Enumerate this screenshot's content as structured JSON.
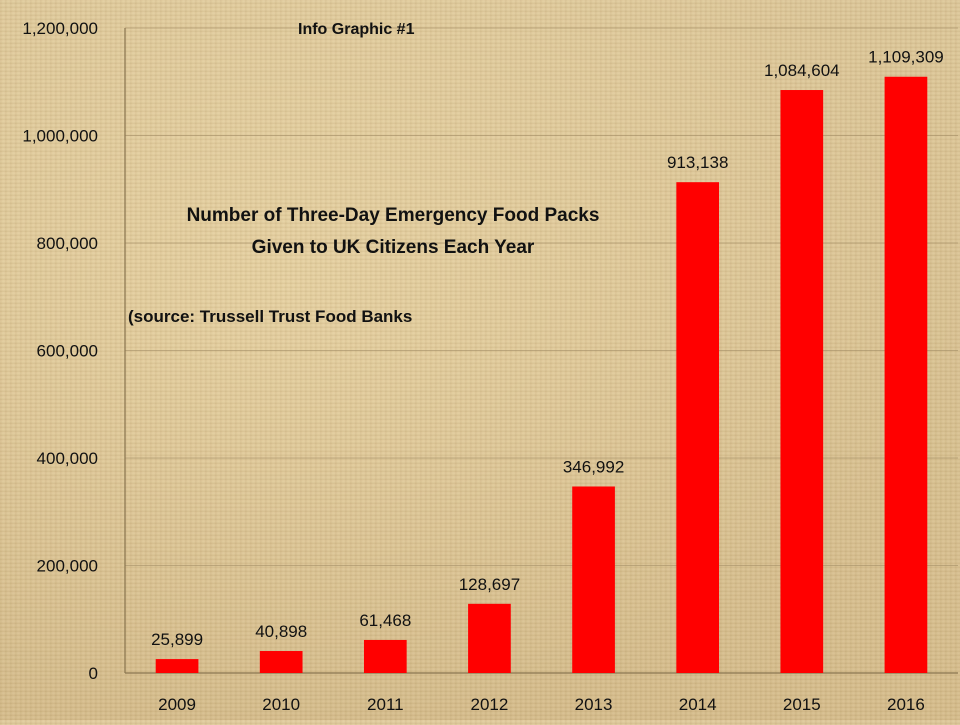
{
  "graphic_label": "Info Graphic #1",
  "colors": {
    "bar": "#ff0000"
  },
  "chart_data": {
    "type": "bar",
    "title": "Number of Three-Day Emergency Food Packs",
    "title_line2": "Given to UK Citizens Each Year",
    "source": "(source: Trussell Trust Food Banks",
    "categories": [
      "2009",
      "2010",
      "2011",
      "2012",
      "2013",
      "2014",
      "2015",
      "2016"
    ],
    "values": [
      25899,
      40898,
      61468,
      128697,
      346992,
      913138,
      1084604,
      1109309
    ],
    "value_labels": [
      "25,899",
      "40,898",
      "61,468",
      "128,697",
      "346,992",
      "913,138",
      "1,084,604",
      "1,109,309"
    ],
    "yticks": [
      0,
      200000,
      400000,
      600000,
      800000,
      1000000,
      1200000
    ],
    "ytick_labels": [
      "0",
      "200,000",
      "400,000",
      "600,000",
      "800,000",
      "1,000,000",
      "1,200,000"
    ],
    "ylim": [
      0,
      1200000
    ],
    "xlabel": "",
    "ylabel": "",
    "grid": true,
    "legend": "none"
  }
}
